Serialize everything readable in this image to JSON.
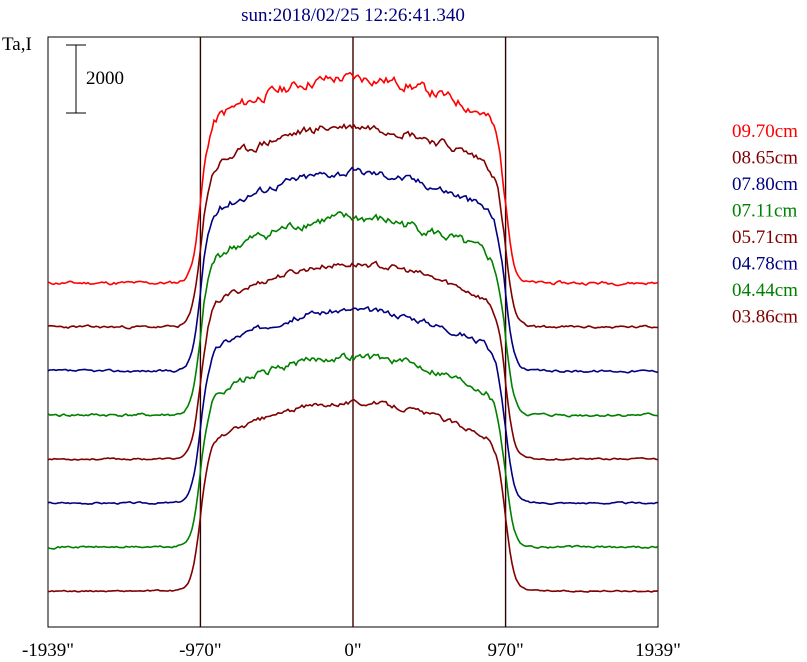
{
  "chart_data": {
    "type": "line",
    "title": "sun:2018/02/25 12:26:41.340",
    "ylabel": "Ta,I",
    "scale_bar_label": "2000",
    "x_ticks": [
      {
        "value": -1939,
        "label": "-1939\""
      },
      {
        "value": -970,
        "label": "-970\""
      },
      {
        "value": 0,
        "label": "0\""
      },
      {
        "value": 970,
        "label": "970\""
      },
      {
        "value": 1939,
        "label": "1939\""
      }
    ],
    "xlim": [
      -1939,
      1939
    ],
    "markers_x": [
      -970,
      0,
      970
    ],
    "series": [
      {
        "name": "09.70cm",
        "color": "#ff0000",
        "level": 8,
        "peak": 1.0,
        "noise": 0.022,
        "seed": 11
      },
      {
        "name": "08.65cm",
        "color": "#800000",
        "level": 7,
        "peak": 0.98,
        "noise": 0.018,
        "seed": 23
      },
      {
        "name": "07.80cm",
        "color": "#000080",
        "level": 6,
        "peak": 0.97,
        "noise": 0.016,
        "seed": 37
      },
      {
        "name": "07.11cm",
        "color": "#008000",
        "level": 5,
        "peak": 0.96,
        "noise": 0.02,
        "seed": 41
      },
      {
        "name": "05.71cm",
        "color": "#800000",
        "level": 4,
        "peak": 0.95,
        "noise": 0.012,
        "seed": 53
      },
      {
        "name": "04.78cm",
        "color": "#000080",
        "level": 3,
        "peak": 0.94,
        "noise": 0.012,
        "seed": 67
      },
      {
        "name": "04.44cm",
        "color": "#008000",
        "level": 2,
        "peak": 0.93,
        "noise": 0.015,
        "seed": 71
      },
      {
        "name": "03.86cm",
        "color": "#800000",
        "level": 1,
        "peak": 0.92,
        "noise": 0.01,
        "seed": 89
      }
    ]
  }
}
